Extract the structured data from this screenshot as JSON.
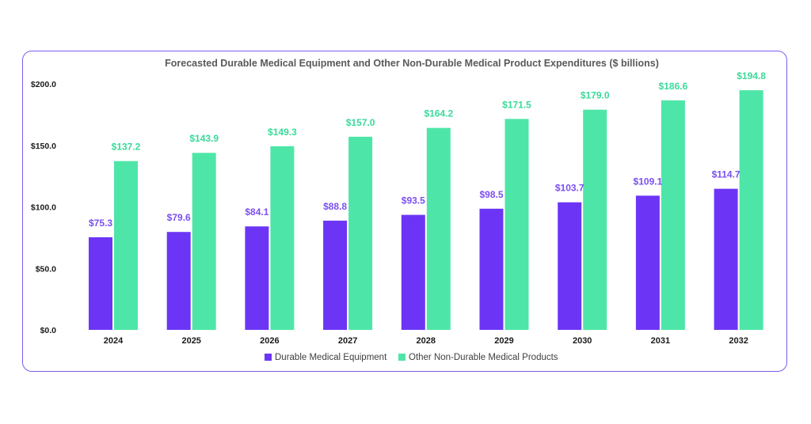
{
  "chart_data": {
    "type": "bar",
    "title": "Forecasted Durable Medical Equipment and Other Non-Durable Medical Product Expenditures ($ billions)",
    "xlabel": "",
    "ylabel": "",
    "ylim": [
      0,
      200
    ],
    "yticks": [
      "$0.0",
      "$50.0",
      "$100.0",
      "$150.0",
      "$200.0"
    ],
    "ytick_values": [
      0,
      50,
      100,
      150,
      200
    ],
    "categories": [
      "2024",
      "2025",
      "2026",
      "2027",
      "2028",
      "2029",
      "2030",
      "2031",
      "2032"
    ],
    "series": [
      {
        "name": "Durable Medical Equipment",
        "color": "#6c35f5",
        "label_color": "#7b4ff0",
        "values": [
          75.3,
          79.6,
          84.1,
          88.8,
          93.5,
          98.5,
          103.7,
          109.1,
          114.7
        ],
        "labels": [
          "$75.3",
          "$79.6",
          "$84.1",
          "$88.8",
          "$93.5",
          "$98.5",
          "$103.7",
          "$109.1",
          "$114.7"
        ]
      },
      {
        "name": "Other Non-Durable Medical Products",
        "color": "#4ee6a8",
        "label_color": "#3ad99a",
        "values": [
          137.2,
          143.9,
          149.3,
          157.0,
          164.2,
          171.5,
          179.0,
          186.6,
          194.8
        ],
        "labels": [
          "$137.2",
          "$143.9",
          "$149.3",
          "$157.0",
          "$164.2",
          "$171.5",
          "$179.0",
          "$186.6",
          "$194.8"
        ]
      }
    ],
    "grid": false,
    "legend": "bottom"
  }
}
